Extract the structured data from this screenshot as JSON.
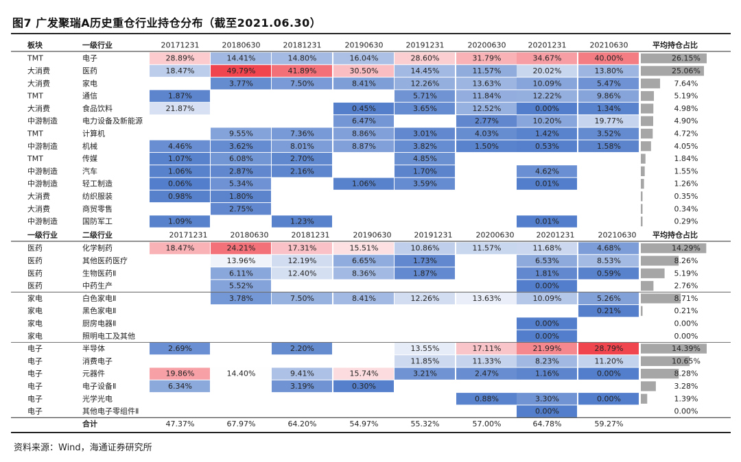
{
  "figure_title": "图7  广发聚瑞A历史重仓行业持仓分布（截至2021.06.30）",
  "source": "资料来源：Wind，海通证券研究所",
  "colors": {
    "red": "#ef3b46",
    "blue": "#4a77c8",
    "avg_bar": "#a6a6a6"
  },
  "chart_data": {
    "type": "table",
    "periods": [
      "20171231",
      "20180630",
      "20181231",
      "20190630",
      "20191231",
      "20200630",
      "20201231",
      "20210630"
    ],
    "avg_label": "平均持仓占比",
    "sections": [
      {
        "headers": [
          "板块",
          "一级行业"
        ],
        "rows": [
          {
            "c1": "TMT",
            "c2": "电子",
            "values": [
              "28.89%",
              "14.41%",
              "14.80%",
              "16.04%",
              "28.60%",
              "31.79%",
              "34.67%",
              "40.00%"
            ],
            "avg": "26.15%"
          },
          {
            "c1": "大消费",
            "c2": "医药",
            "values": [
              "18.47%",
              "49.79%",
              "41.89%",
              "30.50%",
              "14.45%",
              "11.57%",
              "20.02%",
              "13.80%"
            ],
            "avg": "25.06%"
          },
          {
            "c1": "大消费",
            "c2": "家电",
            "values": [
              "",
              "3.77%",
              "7.50%",
              "8.41%",
              "12.26%",
              "13.63%",
              "10.09%",
              "5.47%"
            ],
            "avg": "7.64%"
          },
          {
            "c1": "TMT",
            "c2": "通信",
            "values": [
              "1.87%",
              "",
              "",
              "",
              "5.71%",
              "11.84%",
              "12.22%",
              "9.86%"
            ],
            "avg": "5.19%"
          },
          {
            "c1": "大消费",
            "c2": "食品饮料",
            "values": [
              "21.87%",
              "",
              "",
              "0.45%",
              "3.65%",
              "12.52%",
              "0.00%",
              "1.34%"
            ],
            "avg": "4.98%"
          },
          {
            "c1": "中游制造",
            "c2": "电力设备及新能源",
            "values": [
              "",
              "",
              "",
              "6.47%",
              "",
              "2.77%",
              "10.20%",
              "19.77%"
            ],
            "avg": "4.90%"
          },
          {
            "c1": "TMT",
            "c2": "计算机",
            "values": [
              "",
              "9.55%",
              "7.36%",
              "8.86%",
              "3.01%",
              "4.03%",
              "1.42%",
              "3.52%"
            ],
            "avg": "4.72%"
          },
          {
            "c1": "中游制造",
            "c2": "机械",
            "values": [
              "4.46%",
              "3.62%",
              "8.01%",
              "8.87%",
              "3.82%",
              "1.50%",
              "0.53%",
              "1.58%"
            ],
            "avg": "4.05%"
          },
          {
            "c1": "TMT",
            "c2": "传媒",
            "values": [
              "1.07%",
              "6.08%",
              "2.70%",
              "",
              "4.85%",
              "",
              "",
              ""
            ],
            "avg": "1.84%"
          },
          {
            "c1": "中游制造",
            "c2": "汽车",
            "values": [
              "1.06%",
              "2.87%",
              "2.16%",
              "",
              "1.70%",
              "",
              "4.62%",
              ""
            ],
            "avg": "1.55%"
          },
          {
            "c1": "中游制造",
            "c2": "轻工制造",
            "values": [
              "0.06%",
              "5.34%",
              "",
              "1.06%",
              "3.59%",
              "",
              "0.01%",
              ""
            ],
            "avg": "1.26%"
          },
          {
            "c1": "大消费",
            "c2": "纺织服装",
            "values": [
              "0.98%",
              "1.80%",
              "",
              "",
              "",
              "",
              "",
              ""
            ],
            "avg": "0.35%"
          },
          {
            "c1": "大消费",
            "c2": "商贸零售",
            "values": [
              "",
              "2.75%",
              "",
              "",
              "",
              "",
              "",
              ""
            ],
            "avg": "0.34%"
          },
          {
            "c1": "中游制造",
            "c2": "国防军工",
            "values": [
              "1.09%",
              "",
              "1.23%",
              "",
              "",
              "",
              "0.01%",
              ""
            ],
            "avg": "0.29%"
          }
        ]
      },
      {
        "headers": [
          "一级行业",
          "二级行业"
        ],
        "rows": [
          {
            "c1": "医药",
            "c2": "化学制药",
            "values": [
              "18.47%",
              "24.21%",
              "17.31%",
              "15.51%",
              "10.86%",
              "11.57%",
              "11.68%",
              "4.68%"
            ],
            "avg": "14.29%"
          },
          {
            "c1": "医药",
            "c2": "其他医药医疗",
            "values": [
              "",
              "13.96%",
              "12.19%",
              "6.65%",
              "1.73%",
              "",
              "6.53%",
              "8.53%"
            ],
            "avg": "8.26%"
          },
          {
            "c1": "医药",
            "c2": "生物医药Ⅱ",
            "values": [
              "",
              "6.11%",
              "12.40%",
              "8.36%",
              "1.87%",
              "",
              "1.81%",
              "0.59%"
            ],
            "avg": "5.19%"
          },
          {
            "c1": "医药",
            "c2": "中药生产",
            "values": [
              "",
              "5.52%",
              "",
              "",
              "",
              "",
              "0.00%",
              ""
            ],
            "avg": "2.76%"
          },
          {
            "c1": "家电",
            "c2": "白色家电Ⅱ",
            "values": [
              "",
              "3.78%",
              "7.50%",
              "8.41%",
              "12.26%",
              "13.63%",
              "10.09%",
              "5.26%"
            ],
            "avg": "8.71%"
          },
          {
            "c1": "家电",
            "c2": "黑色家电Ⅱ",
            "values": [
              "",
              "",
              "",
              "",
              "",
              "",
              "",
              "0.21%"
            ],
            "avg": "0.21%"
          },
          {
            "c1": "家电",
            "c2": "厨房电器Ⅱ",
            "values": [
              "",
              "",
              "",
              "",
              "",
              "",
              "0.00%",
              ""
            ],
            "avg": "0.00%"
          },
          {
            "c1": "家电",
            "c2": "照明电工及其他",
            "values": [
              "",
              "",
              "",
              "",
              "",
              "",
              "0.00%",
              ""
            ],
            "avg": "0.00%"
          },
          {
            "c1": "电子",
            "c2": "半导体",
            "values": [
              "2.69%",
              "",
              "2.20%",
              "",
              "13.55%",
              "17.11%",
              "21.99%",
              "28.79%"
            ],
            "avg": "14.39%"
          },
          {
            "c1": "电子",
            "c2": "消费电子",
            "values": [
              "",
              "",
              "",
              "",
              "11.85%",
              "11.33%",
              "8.23%",
              "11.20%"
            ],
            "avg": "10.65%"
          },
          {
            "c1": "电子",
            "c2": "元器件",
            "values": [
              "19.86%",
              "14.40%",
              "9.41%",
              "15.74%",
              "3.21%",
              "2.47%",
              "1.16%",
              "0.00%"
            ],
            "avg": "8.28%"
          },
          {
            "c1": "电子",
            "c2": "电子设备Ⅱ",
            "values": [
              "6.34%",
              "",
              "3.19%",
              "0.30%",
              "",
              "",
              "",
              ""
            ],
            "avg": "3.28%"
          },
          {
            "c1": "电子",
            "c2": "光学光电",
            "values": [
              "",
              "",
              "",
              "",
              "",
              "0.88%",
              "3.30%",
              "0.00%"
            ],
            "avg": "1.39%"
          },
          {
            "c1": "电子",
            "c2": "其他电子零组件Ⅱ",
            "values": [
              "",
              "",
              "",
              "",
              "",
              "",
              "0.00%",
              ""
            ],
            "avg": "0.00%"
          }
        ],
        "total": {
          "label": "合计",
          "values": [
            "47.37%",
            "67.97%",
            "64.20%",
            "54.97%",
            "55.32%",
            "57.00%",
            "64.78%",
            "59.27%"
          ]
        }
      }
    ]
  }
}
